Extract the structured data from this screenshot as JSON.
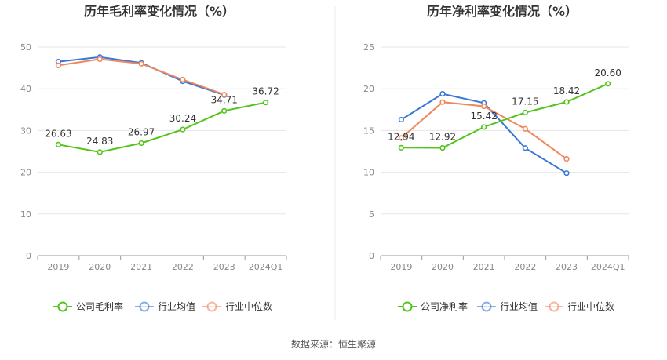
{
  "source_note": "数据来源：恒生聚源",
  "chart_data": [
    {
      "type": "line",
      "title": "历年毛利率变化情况（%）",
      "categories": [
        "2019",
        "2020",
        "2021",
        "2022",
        "2023",
        "2024Q1"
      ],
      "ylim": [
        0,
        50
      ],
      "yticks": [
        0,
        10,
        20,
        30,
        40,
        50
      ],
      "grid": true,
      "legend_position": "bottom-center",
      "series": [
        {
          "name": "公司毛利率",
          "color": "#52c41a",
          "values": [
            26.63,
            24.83,
            26.97,
            30.24,
            34.71,
            36.72
          ],
          "labels": [
            "26.63",
            "24.83",
            "26.97",
            "30.24",
            "34.71",
            "36.72"
          ]
        },
        {
          "name": "行业均值",
          "color": "#3a78d8",
          "values": [
            46.5,
            47.6,
            46.2,
            41.8,
            38.5,
            null
          ]
        },
        {
          "name": "行业中位数",
          "color": "#f0865c",
          "values": [
            45.6,
            47.1,
            46.0,
            42.2,
            38.6,
            null
          ]
        }
      ]
    },
    {
      "type": "line",
      "title": "历年净利率变化情况（%）",
      "categories": [
        "2019",
        "2020",
        "2021",
        "2022",
        "2023",
        "2024Q1"
      ],
      "ylim": [
        0,
        25
      ],
      "yticks": [
        0,
        5,
        10,
        15,
        20,
        25
      ],
      "grid": true,
      "legend_position": "bottom-center",
      "series": [
        {
          "name": "公司净利率",
          "color": "#52c41a",
          "values": [
            12.94,
            12.92,
            15.42,
            17.15,
            18.42,
            20.6
          ],
          "labels": [
            "12.94",
            "12.92",
            "15.42",
            "17.15",
            "18.42",
            "20.60"
          ]
        },
        {
          "name": "行业均值",
          "color": "#3a78d8",
          "values": [
            16.3,
            19.4,
            18.3,
            12.9,
            9.9,
            null
          ]
        },
        {
          "name": "行业中位数",
          "color": "#f0865c",
          "values": [
            14.1,
            18.4,
            17.9,
            15.2,
            11.6,
            null
          ]
        }
      ]
    }
  ]
}
